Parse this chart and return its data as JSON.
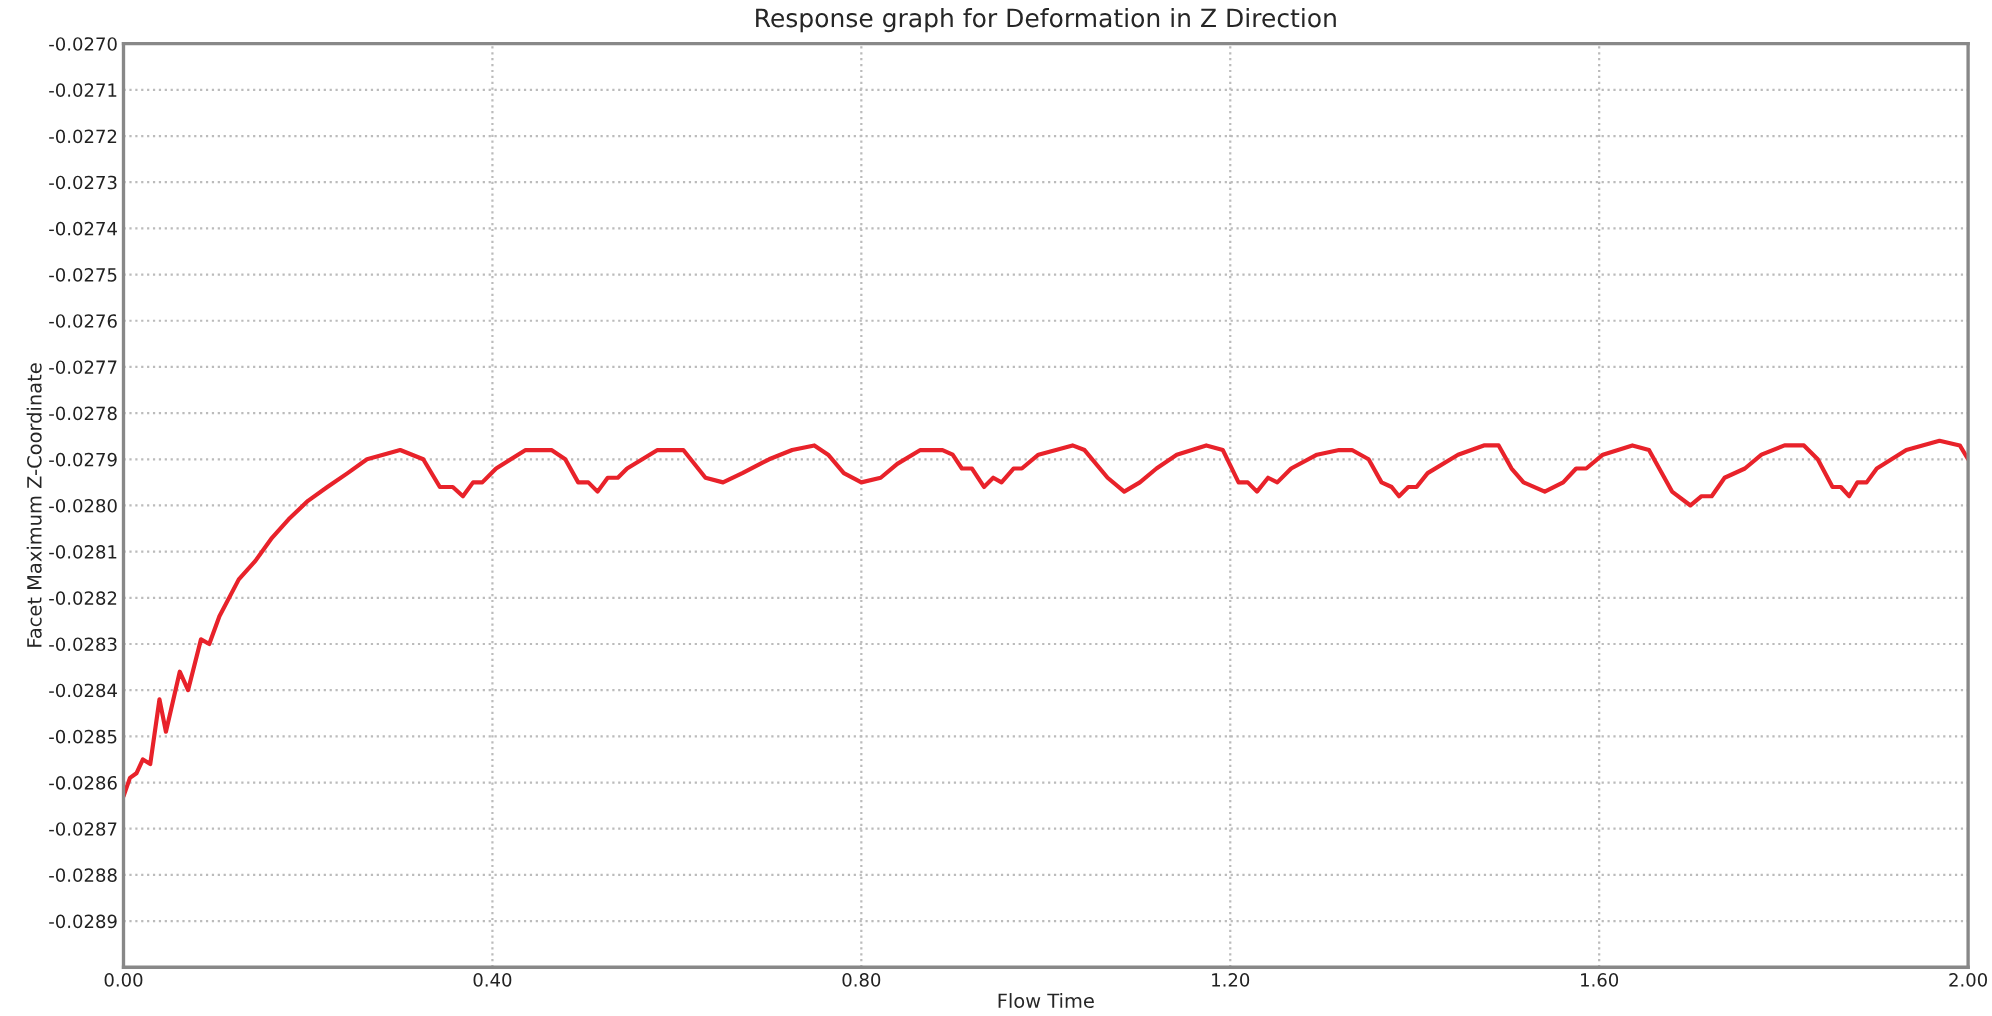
{
  "chart_data": {
    "type": "line",
    "title": "Response graph for Deformation in Z Direction",
    "xlabel": "Flow Time",
    "ylabel": "Facet Maximum Z-Coordinate",
    "xlim": [
      0,
      2.0
    ],
    "ylim": [
      -0.029,
      -0.027
    ],
    "xticks": [
      {
        "value": 0,
        "label": "0.00"
      },
      {
        "value": 0.4,
        "label": "0.40"
      },
      {
        "value": 0.8,
        "label": "0.80"
      },
      {
        "value": 1.2,
        "label": "1.20"
      },
      {
        "value": 1.6,
        "label": "1.60"
      },
      {
        "value": 2.0,
        "label": "2.00"
      }
    ],
    "yticks": [
      {
        "value": -0.027,
        "label": "-0.0270"
      },
      {
        "value": -0.0271,
        "label": "-0.0271"
      },
      {
        "value": -0.0272,
        "label": "-0.0272"
      },
      {
        "value": -0.0273,
        "label": "-0.0273"
      },
      {
        "value": -0.0274,
        "label": "-0.0274"
      },
      {
        "value": -0.0275,
        "label": "-0.0275"
      },
      {
        "value": -0.0276,
        "label": "-0.0276"
      },
      {
        "value": -0.0277,
        "label": "-0.0277"
      },
      {
        "value": -0.0278,
        "label": "-0.0278"
      },
      {
        "value": -0.0279,
        "label": "-0.0279"
      },
      {
        "value": -0.028,
        "label": "-0.0280"
      },
      {
        "value": -0.0281,
        "label": "-0.0281"
      },
      {
        "value": -0.0282,
        "label": "-0.0282"
      },
      {
        "value": -0.0283,
        "label": "-0.0283"
      },
      {
        "value": -0.0284,
        "label": "-0.0284"
      },
      {
        "value": -0.0285,
        "label": "-0.0285"
      },
      {
        "value": -0.0286,
        "label": "-0.0286"
      },
      {
        "value": -0.0287,
        "label": "-0.0287"
      },
      {
        "value": -0.0288,
        "label": "-0.0288"
      },
      {
        "value": -0.0289,
        "label": "-0.0289"
      }
    ],
    "grid": true,
    "marker": "none",
    "line_style": "solid",
    "series": [
      {
        "color": "#e8222a",
        "x": [
          0,
          0.007,
          0.014,
          0.021,
          0.029,
          0.039,
          0.046,
          0.061,
          0.07,
          0.084,
          0.093,
          0.104,
          0.125,
          0.143,
          0.161,
          0.179,
          0.2,
          0.221,
          0.243,
          0.264,
          0.3,
          0.325,
          0.343,
          0.357,
          0.368,
          0.379,
          0.389,
          0.404,
          0.436,
          0.464,
          0.479,
          0.493,
          0.504,
          0.514,
          0.525,
          0.536,
          0.546,
          0.579,
          0.607,
          0.631,
          0.65,
          0.671,
          0.7,
          0.725,
          0.749,
          0.764,
          0.781,
          0.8,
          0.821,
          0.839,
          0.864,
          0.888,
          0.899,
          0.909,
          0.92,
          0.933,
          0.943,
          0.952,
          0.965,
          0.974,
          0.992,
          1.029,
          1.042,
          1.067,
          1.085,
          1.102,
          1.12,
          1.142,
          1.174,
          1.192,
          1.209,
          1.219,
          1.229,
          1.241,
          1.251,
          1.266,
          1.294,
          1.318,
          1.332,
          1.35,
          1.364,
          1.375,
          1.383,
          1.393,
          1.402,
          1.414,
          1.447,
          1.475,
          1.491,
          1.505,
          1.518,
          1.541,
          1.561,
          1.575,
          1.586,
          1.604,
          1.636,
          1.654,
          1.679,
          1.699,
          1.711,
          1.722,
          1.736,
          1.758,
          1.776,
          1.801,
          1.822,
          1.837,
          1.853,
          1.862,
          1.871,
          1.88,
          1.89,
          1.901,
          1.933,
          1.969,
          1.991,
          2.0
        ],
        "values": [
          -0.02863,
          -0.02859,
          -0.02858,
          -0.02855,
          -0.02856,
          -0.02842,
          -0.02849,
          -0.02836,
          -0.0284,
          -0.02829,
          -0.0283,
          -0.02824,
          -0.02816,
          -0.02812,
          -0.02807,
          -0.02803,
          -0.02799,
          -0.02796,
          -0.02793,
          -0.0279,
          -0.02788,
          -0.0279,
          -0.02796,
          -0.02796,
          -0.02798,
          -0.02795,
          -0.02795,
          -0.02792,
          -0.02788,
          -0.02788,
          -0.0279,
          -0.02795,
          -0.02795,
          -0.02797,
          -0.02794,
          -0.02794,
          -0.02792,
          -0.02788,
          -0.02788,
          -0.02794,
          -0.02795,
          -0.02793,
          -0.0279,
          -0.02788,
          -0.02787,
          -0.02789,
          -0.02793,
          -0.02795,
          -0.02794,
          -0.02791,
          -0.02788,
          -0.02788,
          -0.02789,
          -0.02792,
          -0.02792,
          -0.02796,
          -0.02794,
          -0.02795,
          -0.02792,
          -0.02792,
          -0.02789,
          -0.02787,
          -0.02788,
          -0.02794,
          -0.02797,
          -0.02795,
          -0.02792,
          -0.02789,
          -0.02787,
          -0.02788,
          -0.02795,
          -0.02795,
          -0.02797,
          -0.02794,
          -0.02795,
          -0.02792,
          -0.02789,
          -0.02788,
          -0.02788,
          -0.0279,
          -0.02795,
          -0.02796,
          -0.02798,
          -0.02796,
          -0.02796,
          -0.02793,
          -0.02789,
          -0.02787,
          -0.02787,
          -0.02792,
          -0.02795,
          -0.02797,
          -0.02795,
          -0.02792,
          -0.02792,
          -0.02789,
          -0.02787,
          -0.02788,
          -0.02797,
          -0.028,
          -0.02798,
          -0.02798,
          -0.02794,
          -0.02792,
          -0.02789,
          -0.02787,
          -0.02787,
          -0.0279,
          -0.02796,
          -0.02796,
          -0.02798,
          -0.02795,
          -0.02795,
          -0.02792,
          -0.02788,
          -0.02786,
          -0.02787,
          -0.0279
        ]
      }
    ]
  }
}
